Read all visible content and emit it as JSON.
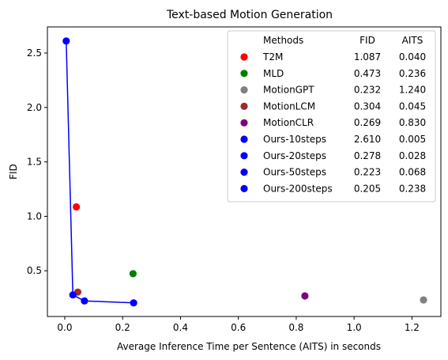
{
  "chart_data": {
    "type": "scatter",
    "title": "Text-based Motion Generation",
    "xlabel": "Average Inference Time per Sentence (AITS) in seconds",
    "ylabel": "FID",
    "xlim": [
      -0.06,
      1.3
    ],
    "ylim": [
      0.08,
      2.74
    ],
    "xticks": [
      "0.0",
      "0.2",
      "0.4",
      "0.6",
      "0.8",
      "1.0",
      "1.2"
    ],
    "yticks": [
      "0.5",
      "1.0",
      "1.5",
      "2.0",
      "2.5"
    ],
    "grid": false,
    "legend": {
      "placement": "top-right",
      "header": {
        "methods": "Methods",
        "fid": "FID",
        "aits": "AITS"
      }
    },
    "series": [
      {
        "name": "T2M",
        "fid_text": "1.087",
        "aits_text": "0.040",
        "x": 0.04,
        "y": 1.087,
        "color": "#ff0000"
      },
      {
        "name": "MLD",
        "fid_text": "0.473",
        "aits_text": "0.236",
        "x": 0.236,
        "y": 0.473,
        "color": "#008000"
      },
      {
        "name": "MotionGPT",
        "fid_text": "0.232",
        "aits_text": "1.240",
        "x": 1.24,
        "y": 0.232,
        "color": "#808080"
      },
      {
        "name": "MotionLCM",
        "fid_text": "0.304",
        "aits_text": "0.045",
        "x": 0.045,
        "y": 0.304,
        "color": "#a52a2a"
      },
      {
        "name": "MotionCLR",
        "fid_text": "0.269",
        "aits_text": "0.830",
        "x": 0.83,
        "y": 0.269,
        "color": "#800080"
      },
      {
        "name": "Ours-10steps",
        "fid_text": "2.610",
        "aits_text": "0.005",
        "x": 0.005,
        "y": 2.61,
        "color": "#0000ff"
      },
      {
        "name": "Ours-20steps",
        "fid_text": "0.278",
        "aits_text": "0.028",
        "x": 0.028,
        "y": 0.278,
        "color": "#0000ff"
      },
      {
        "name": "Ours-50steps",
        "fid_text": "0.223",
        "aits_text": "0.068",
        "x": 0.068,
        "y": 0.223,
        "color": "#0000ff"
      },
      {
        "name": "Ours-200steps",
        "fid_text": "0.205",
        "aits_text": "0.238",
        "x": 0.238,
        "y": 0.205,
        "color": "#0000ff"
      }
    ],
    "line": {
      "color": "#0000ff",
      "points": [
        [
          0.005,
          2.61
        ],
        [
          0.028,
          0.278
        ],
        [
          0.068,
          0.223
        ],
        [
          0.238,
          0.205
        ]
      ]
    }
  }
}
